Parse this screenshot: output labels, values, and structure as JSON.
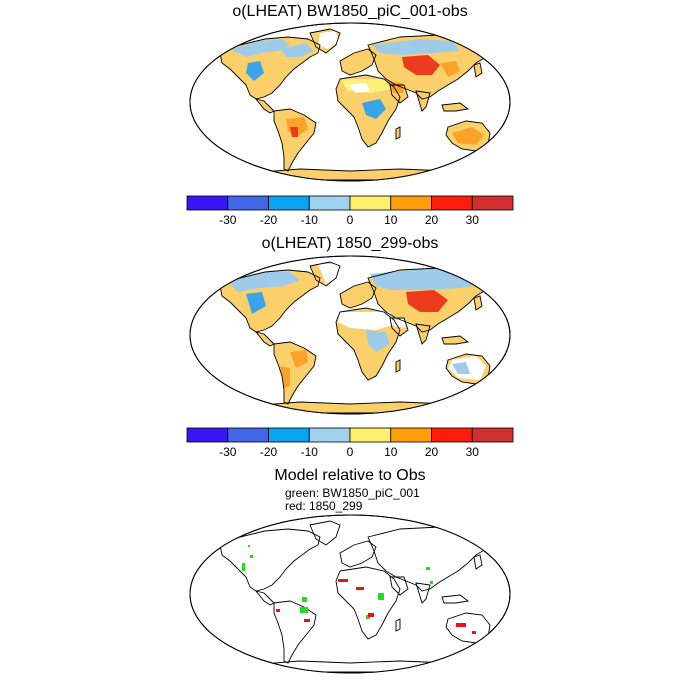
{
  "colors": {
    "palette": [
      "#3b16f5",
      "#4066e4",
      "#0aa4f2",
      "#9ed2ee",
      "#fef06c",
      "#fe9e08",
      "#fe1c0a",
      "#d23030"
    ],
    "land_yellow": "#fbd06a",
    "land_light_yellow": "#fff07a",
    "land_orange": "#fba22a",
    "land_red": "#ec3a1c",
    "land_blue": "#9ecbea",
    "land_mid_blue": "#3aa4e8",
    "green_marker": "#22dd22",
    "red_marker": "#ee1111"
  },
  "panels": [
    {
      "title": "o(LHEAT) BW1850_piC_001-obs"
    },
    {
      "title": "o(LHEAT) 1850_299-obs"
    }
  ],
  "colorbar": {
    "labels": [
      "-30",
      "-20",
      "-10",
      "0",
      "10",
      "20",
      "30"
    ]
  },
  "relative": {
    "title": "Model relative to Obs",
    "legend_green": "green: BW1850_piC_001",
    "legend_red": "red: 1850_299"
  }
}
